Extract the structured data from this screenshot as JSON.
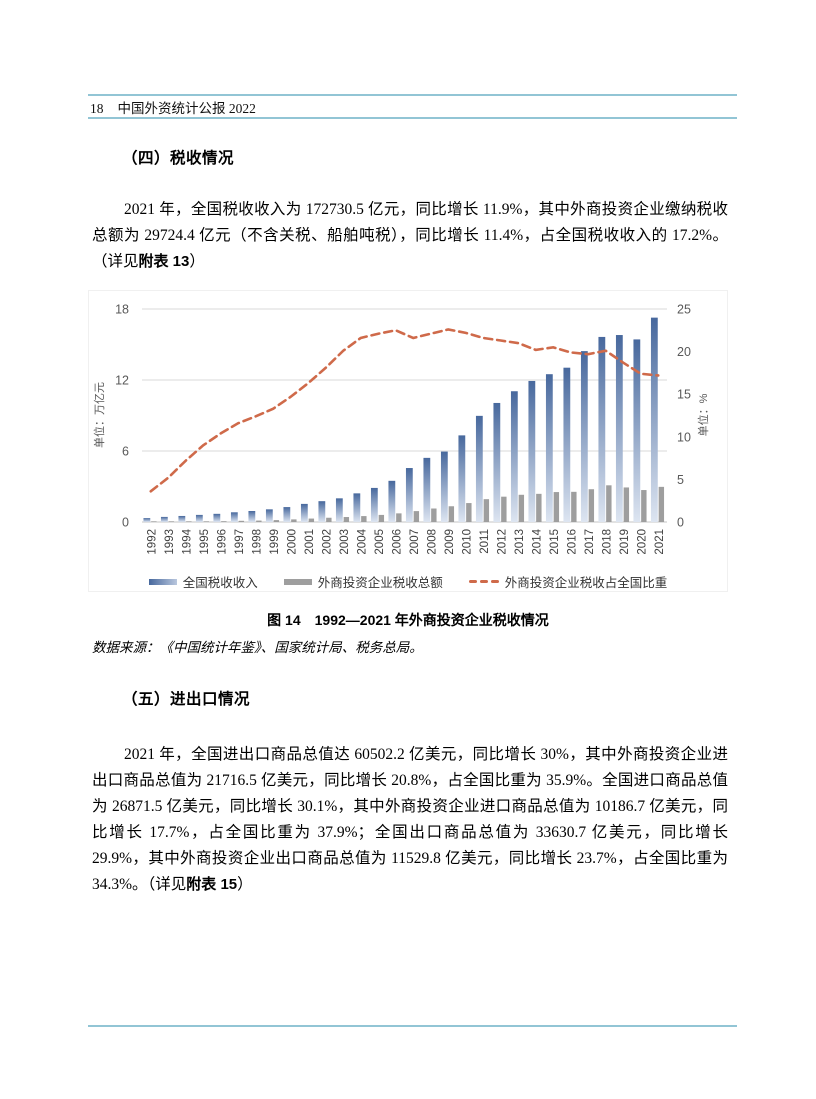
{
  "header": {
    "page_number": "18",
    "title": "中国外资统计公报 2022"
  },
  "section_tax": {
    "heading": "（四）税收情况",
    "paragraph": [
      {
        "text": "2021 年，全国税收收入为 172730.5 亿元，同比增长 11.9%，其中外商投资企业缴纳税收总额为 29724.4 亿元（不含关税、船舶吨税），同比增长 11.4%，占全国税收收入的 17.2%。（详见"
      },
      {
        "text": "附表 13",
        "bold": true
      },
      {
        "text": "）"
      }
    ]
  },
  "chart": {
    "caption": "图 14　1992—2021 年外商投资企业税收情况",
    "source": "数据来源：《中国统计年鉴》、国家统计局、税务总局。",
    "colors": {
      "accent_rule": "#92c5d5",
      "national_bar_top": "#47689d",
      "national_bar_bottom": "#dde5f1",
      "fie_bar": "#9e9e9e",
      "share_line": "#cf6a4a",
      "gridline": "#d8d8d8",
      "baseline": "#c4c4c4",
      "axis_text": "#595959",
      "year_text": "#404040"
    }
  },
  "chart_data": {
    "type": "bar",
    "title": "图 14　1992—2021 年外商投资企业税收情况",
    "categories": [
      "1992",
      "1993",
      "1994",
      "1995",
      "1996",
      "1997",
      "1998",
      "1999",
      "2000",
      "2001",
      "2002",
      "2003",
      "2004",
      "2005",
      "2006",
      "2007",
      "2008",
      "2009",
      "2010",
      "2011",
      "2012",
      "2013",
      "2014",
      "2015",
      "2016",
      "2017",
      "2018",
      "2019",
      "2020",
      "2021"
    ],
    "series": [
      {
        "name": "全国税收收入",
        "type": "bar",
        "axis": "left",
        "unit": "万亿元",
        "values": [
          0.33,
          0.43,
          0.51,
          0.6,
          0.69,
          0.82,
          0.93,
          1.07,
          1.26,
          1.53,
          1.76,
          2.0,
          2.42,
          2.88,
          3.48,
          4.56,
          5.42,
          5.95,
          7.32,
          8.97,
          10.06,
          11.05,
          11.92,
          12.49,
          13.04,
          14.44,
          15.64,
          15.8,
          15.43,
          17.27
        ]
      },
      {
        "name": "外商投资企业税收总额",
        "type": "bar",
        "axis": "left",
        "unit": "万亿元",
        "values": [
          0.01,
          0.02,
          0.04,
          0.05,
          0.07,
          0.1,
          0.12,
          0.16,
          0.22,
          0.29,
          0.36,
          0.42,
          0.5,
          0.6,
          0.73,
          0.92,
          1.14,
          1.33,
          1.6,
          1.93,
          2.14,
          2.3,
          2.38,
          2.53,
          2.55,
          2.77,
          3.1,
          2.92,
          2.7,
          2.97
        ]
      },
      {
        "name": "外商投资企业税收占全国比重",
        "type": "line",
        "axis": "right",
        "unit": "%",
        "values": [
          3.6,
          5.2,
          7.2,
          9.0,
          10.4,
          11.6,
          12.4,
          13.3,
          14.7,
          16.3,
          18.1,
          20.1,
          21.6,
          22.1,
          22.5,
          21.6,
          22.1,
          22.6,
          22.2,
          21.6,
          21.3,
          21.0,
          20.2,
          20.5,
          19.9,
          19.7,
          20.1,
          18.7,
          17.4,
          17.2
        ]
      }
    ],
    "left_axis": {
      "label": "单位：万亿元",
      "ticks": [
        0,
        6,
        12,
        18
      ],
      "max": 18
    },
    "right_axis": {
      "label": "单位：%",
      "ticks": [
        0,
        5,
        10,
        15,
        20,
        25
      ],
      "max": 25
    },
    "legend_position": "bottom",
    "grid": "horizontal"
  },
  "section_trade": {
    "heading": "（五）进出口情况",
    "paragraph": [
      {
        "text": "2021 年，全国进出口商品总值达 60502.2 亿美元，同比增长 30%，其中外商投资企业进出口商品总值为 21716.5 亿美元，同比增长 20.8%，占全国比重为 35.9%。全国进口商品总值为 26871.5 亿美元，同比增长 30.1%，其中外商投资企业进口商品总值为 10186.7 亿美元，同比增长 17.7%，占全国比重为 37.9%；全国出口商品总值为 33630.7 亿美元，同比增长 29.9%，其中外商投资企业出口商品总值为 11529.8 亿美元，同比增长 23.7%，占全国比重为 34.3%。（详见"
      },
      {
        "text": "附表 15",
        "bold": true
      },
      {
        "text": "）"
      }
    ]
  }
}
